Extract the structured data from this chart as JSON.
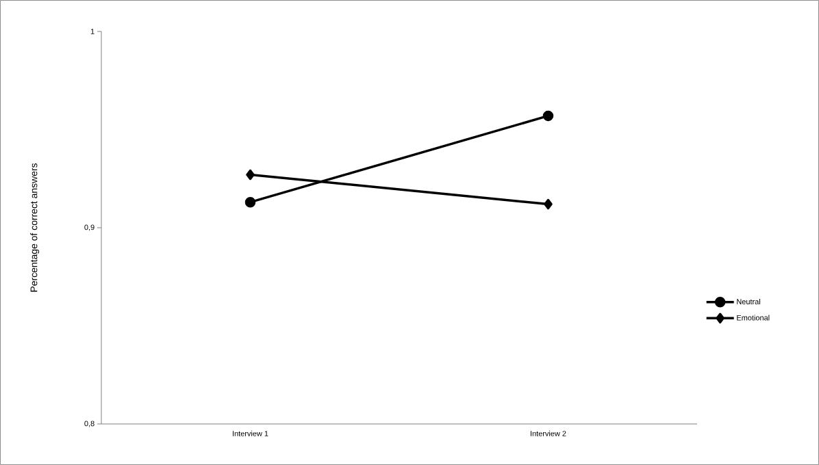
{
  "chart_data": {
    "type": "line",
    "ylabel": "Percentage of correct answers",
    "categories": [
      "Interview 1",
      "Interview 2"
    ],
    "series": [
      {
        "name": "Neutral",
        "color": "#000000",
        "marker": "circle",
        "values": [
          0.913,
          0.957
        ]
      },
      {
        "name": "Emotional",
        "color": "#000000",
        "marker": "diamond",
        "values": [
          0.927,
          0.912
        ]
      }
    ],
    "ylim": [
      0.8,
      1
    ],
    "yticks": [
      {
        "value": 0.8,
        "label": "0,8"
      },
      {
        "value": 0.9,
        "label": "0,9"
      },
      {
        "value": 1,
        "label": "1"
      }
    ],
    "grid": false,
    "legend": "right",
    "line_style": "solid"
  }
}
